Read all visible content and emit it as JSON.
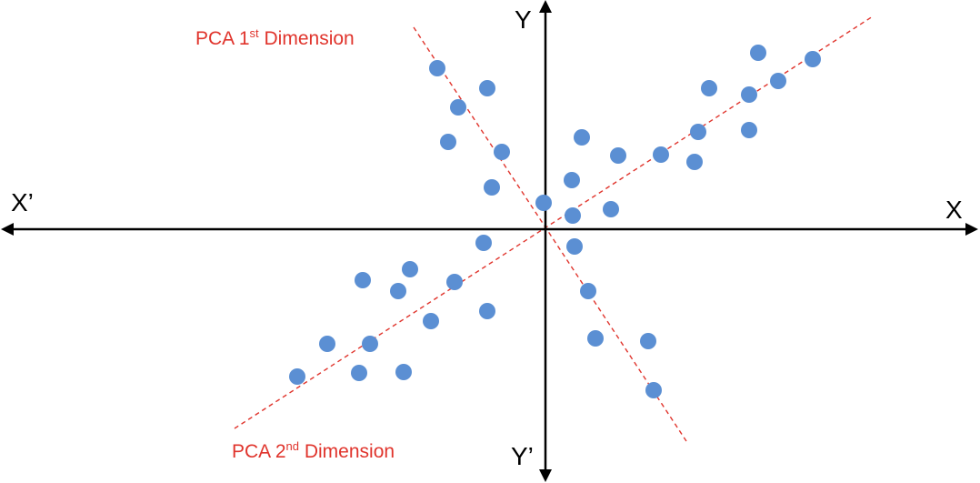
{
  "axes": {
    "x_label": "X",
    "x_neg_label": "X’",
    "y_label": "Y",
    "y_neg_label": "Y’",
    "color": "#000000"
  },
  "pca": {
    "color": "#e0342c",
    "first": {
      "prefix": "PCA 1",
      "sup": "st",
      "suffix": " Dimension"
    },
    "second": {
      "prefix": "PCA 2",
      "sup": "nd",
      "suffix": " Dimension"
    }
  },
  "point_color": "#5b8fd3"
}
